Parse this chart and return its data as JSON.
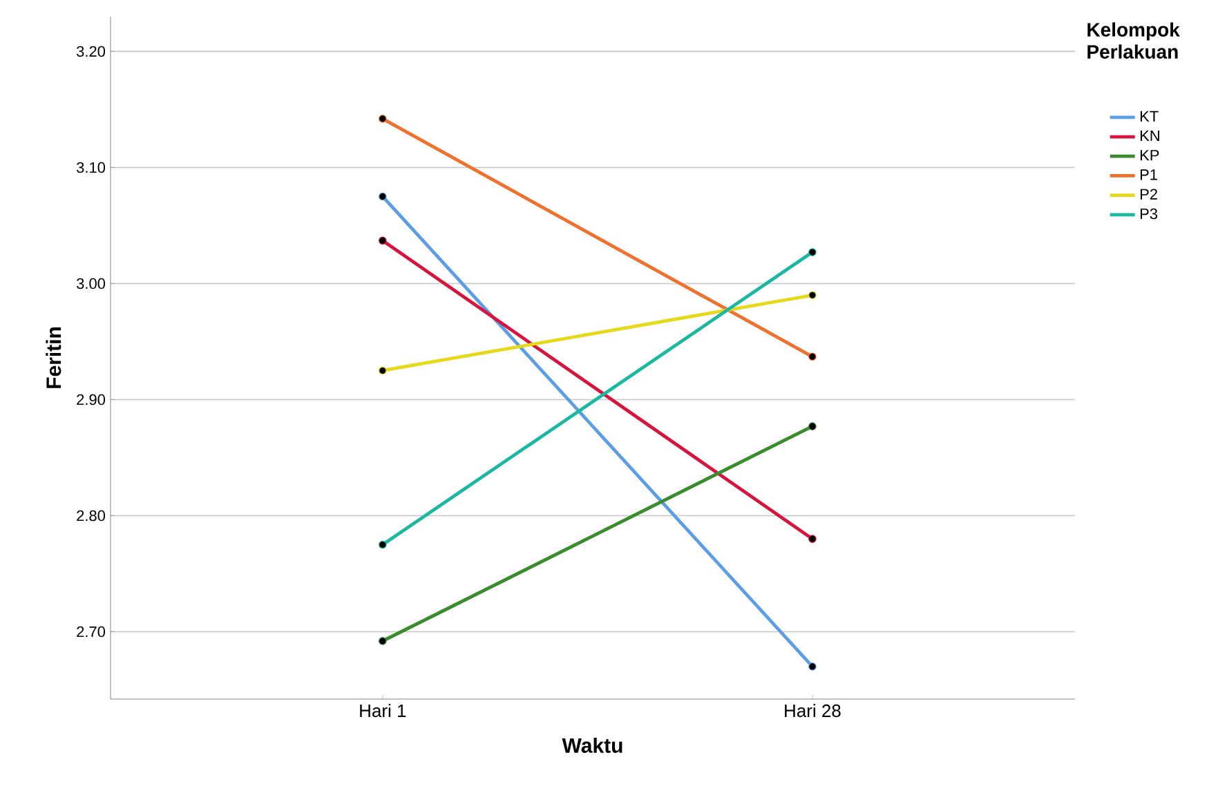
{
  "chart_data": {
    "type": "line",
    "xlabel": "Waktu",
    "ylabel": "Feritin",
    "legend_title": "Kelompok Perlakuan",
    "categories": [
      "Hari 1",
      "Hari 28"
    ],
    "series": [
      {
        "name": "KT",
        "color": "#5b9ee6",
        "values": [
          3.075,
          2.67
        ]
      },
      {
        "name": "KN",
        "color": "#d6143c",
        "values": [
          3.037,
          2.78
        ]
      },
      {
        "name": "KP",
        "color": "#3a8c2e",
        "values": [
          2.692,
          2.877
        ]
      },
      {
        "name": "P1",
        "color": "#f0702e",
        "values": [
          3.142,
          2.937
        ]
      },
      {
        "name": "P2",
        "color": "#e6d91a",
        "values": [
          2.925,
          2.99
        ]
      },
      {
        "name": "P3",
        "color": "#1ab8a0",
        "values": [
          2.775,
          3.027
        ]
      }
    ],
    "ylim": [
      2.642,
      3.23
    ],
    "yticks": [
      {
        "value": 2.7,
        "label": "2.70"
      },
      {
        "value": 2.8,
        "label": "2.80"
      },
      {
        "value": 2.9,
        "label": "2.90"
      },
      {
        "value": 3.0,
        "label": "3.00"
      },
      {
        "value": 3.1,
        "label": "3.10"
      },
      {
        "value": 3.2,
        "label": "3.20"
      }
    ],
    "grid": "y",
    "legend": "right",
    "marker": "circle",
    "line_style": "solid"
  }
}
